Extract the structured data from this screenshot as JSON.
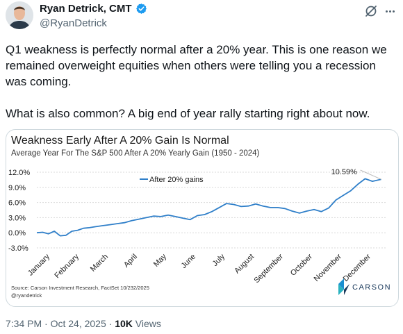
{
  "author": {
    "display_name": "Ryan Detrick, CMT",
    "handle": "@RyanDetrick",
    "verified_color": "#1d9bf0"
  },
  "tweet": {
    "text": "Q1 weakness is perfectly normal after a 20% year. This is one reason we remained overweight equities when others were telling you a recession was coming.\n\nWhat is also common? A big end of year rally starting right about now.",
    "time": "7:34 PM",
    "date": "Oct 24, 2025",
    "views_count": "10K",
    "views_label": "Views"
  },
  "icons": {
    "grok": "grok-icon",
    "more": "more-icon",
    "verified": "verified-badge-icon"
  },
  "chart_data": {
    "type": "line",
    "title": "Weakness Early After A 20% Gain Is Normal",
    "subtitle": "Average Year For The S&P 500 After A 20% Yearly Gain (1950 - 2024)",
    "x_tick_labels": [
      "January",
      "February",
      "March",
      "April",
      "May",
      "June",
      "July",
      "August",
      "September",
      "October",
      "November",
      "December"
    ],
    "y_tick_labels": [
      "12.0%",
      "9.0%",
      "6.0%",
      "3.0%",
      "0.0%",
      "-3.0%"
    ],
    "ylim": [
      -3,
      12
    ],
    "legend": "After 20% gains",
    "end_label": "10.59%",
    "source": "Source: Carson Investment Research, FactSet 10/232/2025",
    "credit": "@ryandetrick",
    "brand": "CARSON",
    "line_color": "#2f7fc9",
    "series": [
      {
        "name": "After 20% gains",
        "x_months": [
          0,
          0.2,
          0.4,
          0.6,
          0.8,
          1.0,
          1.2,
          1.4,
          1.6,
          1.8,
          2.0,
          2.25,
          2.5,
          2.75,
          3.0,
          3.25,
          3.5,
          3.75,
          4.0,
          4.25,
          4.5,
          4.75,
          5.0,
          5.25,
          5.5,
          5.75,
          6.0,
          6.25,
          6.5,
          6.75,
          7.0,
          7.25,
          7.5,
          7.75,
          8.0,
          8.25,
          8.5,
          8.75,
          9.0,
          9.25,
          9.5,
          9.75,
          10.0,
          10.25,
          10.5,
          10.75,
          11.0,
          11.25,
          11.5,
          11.8
        ],
        "y_pct": [
          0.0,
          0.1,
          -0.2,
          0.3,
          -0.6,
          -0.5,
          0.3,
          0.5,
          0.9,
          1.0,
          1.2,
          1.4,
          1.6,
          1.8,
          2.0,
          2.4,
          2.7,
          3.0,
          3.3,
          3.2,
          3.5,
          3.2,
          2.9,
          2.6,
          3.4,
          3.6,
          4.2,
          5.0,
          5.8,
          5.6,
          5.2,
          5.3,
          5.7,
          5.3,
          5.0,
          5.0,
          4.8,
          4.3,
          3.9,
          4.3,
          4.6,
          4.2,
          4.9,
          6.5,
          7.4,
          8.3,
          9.6,
          10.7,
          10.2,
          10.59
        ]
      }
    ]
  }
}
